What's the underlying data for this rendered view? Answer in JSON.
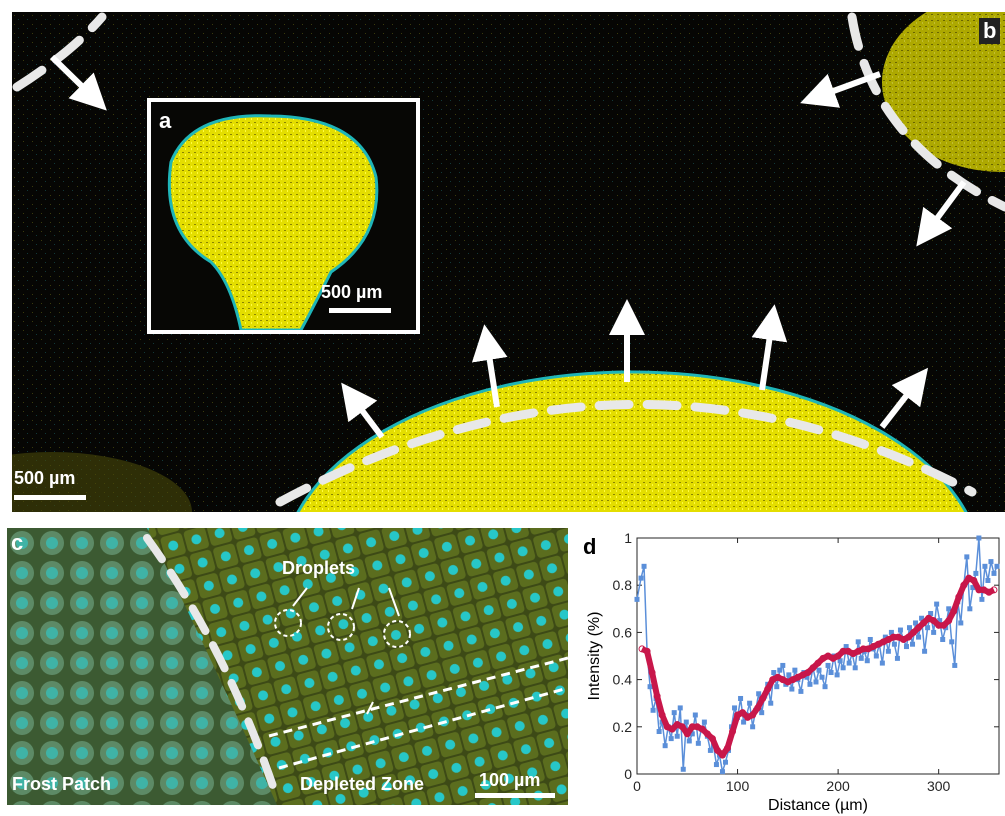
{
  "panel_b": {
    "label": "b",
    "scale_bar": "500 µm",
    "inset": {
      "label": "a",
      "scale_bar": "500 µm"
    }
  },
  "panel_c": {
    "label": "c",
    "annotations": {
      "droplets": "Droplets",
      "depleted_zone": "Depleted Zone",
      "frost_patch": "Frost Patch"
    },
    "scale_bar": "100 µm"
  },
  "panel_d": {
    "label": "d"
  },
  "chart_data": {
    "type": "line",
    "xlabel": "Distance (µm)",
    "ylabel": "Intensity (%)",
    "xlim": [
      0,
      360
    ],
    "ylim": [
      0,
      1
    ],
    "xticks": [
      0,
      100,
      200,
      300
    ],
    "yticks": [
      0,
      0.2,
      0.4,
      0.6,
      0.8,
      1
    ],
    "grid": false,
    "colors": {
      "raw": "#5b8fd9",
      "smooth": "#c8174a"
    },
    "series": [
      {
        "marker": "square",
        "x": [
          0,
          4,
          7,
          10,
          13,
          16,
          19,
          22,
          25,
          28,
          31,
          34,
          37,
          40,
          43,
          46,
          49,
          52,
          55,
          58,
          61,
          64,
          67,
          70,
          73,
          76,
          79,
          82,
          85,
          88,
          91,
          94,
          97,
          100,
          103,
          106,
          109,
          112,
          115,
          118,
          121,
          124,
          127,
          130,
          133,
          136,
          139,
          142,
          145,
          148,
          151,
          154,
          157,
          160,
          163,
          166,
          169,
          172,
          175,
          178,
          181,
          184,
          187,
          190,
          193,
          196,
          199,
          202,
          205,
          208,
          211,
          214,
          217,
          220,
          223,
          226,
          229,
          232,
          235,
          238,
          241,
          244,
          247,
          250,
          253,
          256,
          259,
          262,
          265,
          268,
          271,
          274,
          277,
          280,
          283,
          286,
          289,
          292,
          295,
          298,
          301,
          304,
          307,
          310,
          313,
          316,
          319,
          322,
          325,
          328,
          331,
          334,
          337,
          340,
          343,
          346,
          349,
          352,
          355,
          358
        ],
        "y": [
          0.74,
          0.83,
          0.88,
          0.52,
          0.37,
          0.27,
          0.32,
          0.18,
          0.22,
          0.12,
          0.2,
          0.15,
          0.26,
          0.16,
          0.28,
          0.02,
          0.22,
          0.14,
          0.17,
          0.25,
          0.13,
          0.19,
          0.22,
          0.16,
          0.1,
          0.12,
          0.04,
          0.08,
          0.01,
          0.05,
          0.1,
          0.2,
          0.28,
          0.24,
          0.32,
          0.22,
          0.25,
          0.3,
          0.2,
          0.27,
          0.34,
          0.26,
          0.33,
          0.38,
          0.3,
          0.43,
          0.37,
          0.44,
          0.46,
          0.38,
          0.42,
          0.36,
          0.44,
          0.4,
          0.35,
          0.43,
          0.41,
          0.38,
          0.45,
          0.39,
          0.44,
          0.41,
          0.37,
          0.46,
          0.43,
          0.5,
          0.42,
          0.48,
          0.45,
          0.54,
          0.47,
          0.51,
          0.45,
          0.56,
          0.49,
          0.52,
          0.48,
          0.57,
          0.53,
          0.5,
          0.55,
          0.47,
          0.58,
          0.52,
          0.6,
          0.55,
          0.49,
          0.61,
          0.57,
          0.54,
          0.62,
          0.55,
          0.64,
          0.58,
          0.66,
          0.52,
          0.62,
          0.68,
          0.6,
          0.72,
          0.65,
          0.57,
          0.62,
          0.7,
          0.56,
          0.46,
          0.73,
          0.64,
          0.8,
          0.92,
          0.7,
          0.79,
          0.85,
          1.0,
          0.74,
          0.88,
          0.82,
          0.9,
          0.85,
          0.88
        ]
      },
      {
        "marker": "circle",
        "x": [
          5,
          10,
          15,
          20,
          25,
          30,
          35,
          40,
          45,
          50,
          55,
          60,
          65,
          70,
          75,
          80,
          85,
          90,
          95,
          100,
          105,
          110,
          115,
          120,
          125,
          130,
          135,
          140,
          145,
          150,
          155,
          160,
          165,
          170,
          175,
          180,
          185,
          190,
          195,
          200,
          205,
          210,
          215,
          220,
          225,
          230,
          235,
          240,
          245,
          250,
          255,
          260,
          265,
          270,
          275,
          280,
          285,
          290,
          295,
          300,
          305,
          310,
          315,
          320,
          325,
          330,
          335,
          340,
          345,
          350,
          355
        ],
        "y": [
          0.53,
          0.52,
          0.43,
          0.33,
          0.25,
          0.2,
          0.19,
          0.21,
          0.2,
          0.17,
          0.2,
          0.2,
          0.19,
          0.17,
          0.15,
          0.1,
          0.08,
          0.11,
          0.18,
          0.25,
          0.26,
          0.24,
          0.25,
          0.28,
          0.32,
          0.36,
          0.4,
          0.41,
          0.4,
          0.39,
          0.4,
          0.41,
          0.42,
          0.43,
          0.45,
          0.47,
          0.49,
          0.5,
          0.49,
          0.5,
          0.52,
          0.52,
          0.51,
          0.52,
          0.53,
          0.53,
          0.54,
          0.55,
          0.56,
          0.57,
          0.58,
          0.58,
          0.57,
          0.58,
          0.6,
          0.62,
          0.64,
          0.66,
          0.65,
          0.63,
          0.63,
          0.65,
          0.69,
          0.75,
          0.8,
          0.83,
          0.82,
          0.78,
          0.78,
          0.77,
          0.78
        ]
      }
    ]
  }
}
